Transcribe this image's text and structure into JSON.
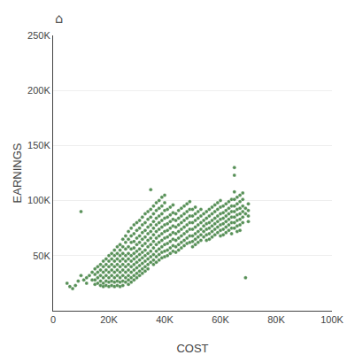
{
  "chart_data": {
    "type": "scatter",
    "xlabel": "COST",
    "ylabel": "EARNINGS",
    "annotations": [
      "⌂"
    ],
    "color": "#3a7d3a",
    "grid": "y",
    "xlim": [
      0,
      100000
    ],
    "ylim": [
      0,
      250000
    ],
    "xticks": [
      0,
      {
        "value": 20000,
        "label": "20K"
      },
      {
        "value": 40000,
        "label": "40K"
      },
      {
        "value": 60000,
        "label": "60K"
      },
      {
        "value": 80000,
        "label": "80K"
      },
      {
        "value": 100000,
        "label": "100K"
      }
    ],
    "yticks": [
      {
        "value": 50000,
        "label": "50K"
      },
      {
        "value": 100000,
        "label": "100K"
      },
      {
        "value": 150000,
        "label": "150K"
      },
      {
        "value": 200000,
        "label": "200K"
      },
      {
        "value": 250000,
        "label": "250K"
      }
    ],
    "x": [
      5000,
      6000,
      7000,
      8000,
      9000,
      10000,
      10000,
      11000,
      12000,
      12000,
      13000,
      14000,
      14000,
      15000,
      15000,
      15000,
      15000,
      16000,
      16000,
      16000,
      16000,
      17000,
      17000,
      17000,
      17000,
      17000,
      18000,
      18000,
      18000,
      18000,
      18000,
      18000,
      19000,
      19000,
      19000,
      19000,
      19000,
      19000,
      20000,
      20000,
      20000,
      20000,
      20000,
      20000,
      20000,
      21000,
      21000,
      21000,
      21000,
      21000,
      21000,
      21000,
      22000,
      22000,
      22000,
      22000,
      22000,
      22000,
      22000,
      22000,
      23000,
      23000,
      23000,
      23000,
      23000,
      23000,
      23000,
      23000,
      24000,
      24000,
      24000,
      24000,
      24000,
      24000,
      24000,
      24000,
      24000,
      25000,
      25000,
      25000,
      25000,
      25000,
      25000,
      25000,
      25000,
      25000,
      26000,
      26000,
      26000,
      26000,
      26000,
      26000,
      26000,
      26000,
      26000,
      27000,
      27000,
      27000,
      27000,
      27000,
      27000,
      27000,
      27000,
      27000,
      27000,
      28000,
      28000,
      28000,
      28000,
      28000,
      28000,
      28000,
      28000,
      28000,
      28000,
      29000,
      29000,
      29000,
      29000,
      29000,
      29000,
      29000,
      29000,
      29000,
      29000,
      30000,
      30000,
      30000,
      30000,
      30000,
      30000,
      30000,
      30000,
      30000,
      30000,
      31000,
      31000,
      31000,
      31000,
      31000,
      31000,
      31000,
      31000,
      31000,
      31000,
      32000,
      32000,
      32000,
      32000,
      32000,
      32000,
      32000,
      32000,
      32000,
      32000,
      33000,
      33000,
      33000,
      33000,
      33000,
      33000,
      33000,
      33000,
      33000,
      33000,
      34000,
      34000,
      34000,
      34000,
      34000,
      34000,
      34000,
      34000,
      34000,
      34000,
      35000,
      35000,
      35000,
      35000,
      35000,
      35000,
      35000,
      35000,
      35000,
      35000,
      36000,
      36000,
      36000,
      36000,
      36000,
      36000,
      36000,
      36000,
      36000,
      36000,
      37000,
      37000,
      37000,
      37000,
      37000,
      37000,
      37000,
      37000,
      37000,
      37000,
      38000,
      38000,
      38000,
      38000,
      38000,
      38000,
      38000,
      38000,
      38000,
      38000,
      39000,
      39000,
      39000,
      39000,
      39000,
      39000,
      39000,
      39000,
      39000,
      39000,
      40000,
      40000,
      40000,
      40000,
      40000,
      40000,
      40000,
      40000,
      40000,
      40000,
      41000,
      41000,
      41000,
      41000,
      41000,
      41000,
      41000,
      41000,
      42000,
      42000,
      42000,
      42000,
      42000,
      42000,
      42000,
      42000,
      43000,
      43000,
      43000,
      43000,
      43000,
      43000,
      43000,
      43000,
      44000,
      44000,
      44000,
      44000,
      44000,
      44000,
      44000,
      45000,
      45000,
      45000,
      45000,
      45000,
      45000,
      45000,
      46000,
      46000,
      46000,
      46000,
      46000,
      46000,
      46000,
      47000,
      47000,
      47000,
      47000,
      47000,
      47000,
      47000,
      48000,
      48000,
      48000,
      48000,
      48000,
      48000,
      48000,
      49000,
      49000,
      49000,
      49000,
      49000,
      49000,
      49000,
      50000,
      50000,
      50000,
      50000,
      50000,
      50000,
      50000,
      51000,
      51000,
      51000,
      51000,
      51000,
      51000,
      51000,
      52000,
      52000,
      52000,
      52000,
      52000,
      52000,
      53000,
      53000,
      53000,
      53000,
      53000,
      53000,
      54000,
      54000,
      54000,
      54000,
      54000,
      55000,
      55000,
      55000,
      55000,
      55000,
      55000,
      56000,
      56000,
      56000,
      56000,
      56000,
      56000,
      57000,
      57000,
      57000,
      57000,
      57000,
      57000,
      58000,
      58000,
      58000,
      58000,
      58000,
      58000,
      59000,
      59000,
      59000,
      59000,
      59000,
      59000,
      60000,
      60000,
      60000,
      60000,
      60000,
      60000,
      60000,
      61000,
      61000,
      61000,
      61000,
      61000,
      61000,
      62000,
      62000,
      62000,
      62000,
      62000,
      62000,
      63000,
      63000,
      63000,
      63000,
      63000,
      63000,
      64000,
      64000,
      64000,
      64000,
      64000,
      64000,
      64000,
      65000,
      65000,
      65000,
      65000,
      65000,
      65000,
      65000,
      65000,
      65000,
      66000,
      66000,
      66000,
      66000,
      66000,
      66000,
      66000,
      67000,
      67000,
      67000,
      67000,
      67000,
      67000,
      67000,
      68000,
      68000,
      68000,
      68000,
      68000,
      68000,
      69000,
      69000,
      69000,
      70000,
      70000,
      70000,
      70000
    ],
    "values": [
      25000,
      22000,
      20000,
      23000,
      27000,
      90000,
      32000,
      28000,
      30000,
      25000,
      32000,
      35000,
      28000,
      38000,
      33000,
      28000,
      24000,
      40000,
      35000,
      30000,
      25000,
      42000,
      37000,
      32000,
      27000,
      23000,
      45000,
      40000,
      35000,
      30000,
      25000,
      22000,
      47000,
      42000,
      37000,
      32000,
      27000,
      23000,
      50000,
      45000,
      40000,
      35000,
      30000,
      26000,
      22000,
      52000,
      47000,
      42000,
      37000,
      32000,
      27000,
      23000,
      55000,
      50000,
      45000,
      40000,
      35000,
      30000,
      26000,
      22000,
      58000,
      52000,
      47000,
      42000,
      37000,
      32000,
      27000,
      23000,
      60000,
      55000,
      50000,
      45000,
      40000,
      35000,
      30000,
      26000,
      22000,
      65000,
      58000,
      52000,
      47000,
      42000,
      37000,
      32000,
      27000,
      23000,
      68000,
      62000,
      56000,
      50000,
      45000,
      40000,
      35000,
      30000,
      26000,
      72000,
      65000,
      58000,
      52000,
      47000,
      42000,
      37000,
      32000,
      28000,
      24000,
      75000,
      68000,
      62000,
      56000,
      50000,
      45000,
      40000,
      35000,
      30000,
      26000,
      78000,
      70000,
      63000,
      57000,
      52000,
      47000,
      42000,
      37000,
      32000,
      28000,
      80000,
      73000,
      66000,
      60000,
      54000,
      49000,
      44000,
      39000,
      34000,
      30000,
      82000,
      75000,
      68000,
      62000,
      56000,
      51000,
      46000,
      41000,
      36000,
      32000,
      85000,
      78000,
      71000,
      65000,
      59000,
      53000,
      48000,
      43000,
      38000,
      34000,
      88000,
      80000,
      73000,
      67000,
      61000,
      55000,
      50000,
      45000,
      40000,
      36000,
      90000,
      83000,
      76000,
      70000,
      64000,
      58000,
      52000,
      47000,
      42000,
      38000,
      110000,
      92000,
      85000,
      78000,
      72000,
      66000,
      60000,
      54000,
      49000,
      44000,
      95000,
      88000,
      81000,
      75000,
      69000,
      63000,
      57000,
      51000,
      46000,
      42000,
      98000,
      91000,
      84000,
      78000,
      72000,
      66000,
      60000,
      54000,
      49000,
      44000,
      100000,
      93000,
      86000,
      80000,
      74000,
      68000,
      62000,
      56000,
      51000,
      46000,
      103000,
      95000,
      88000,
      82000,
      76000,
      70000,
      64000,
      58000,
      53000,
      48000,
      105000,
      98000,
      91000,
      84000,
      78000,
      72000,
      66000,
      60000,
      54000,
      49000,
      92000,
      85000,
      79000,
      73000,
      67000,
      61000,
      55000,
      50000,
      94000,
      87000,
      81000,
      75000,
      69000,
      63000,
      57000,
      52000,
      96000,
      89000,
      83000,
      77000,
      71000,
      65000,
      59000,
      54000,
      88000,
      82000,
      76000,
      70000,
      64000,
      58000,
      53000,
      91000,
      84000,
      78000,
      72000,
      66000,
      60000,
      55000,
      93000,
      86000,
      80000,
      74000,
      68000,
      62000,
      57000,
      95000,
      88000,
      82000,
      76000,
      70000,
      64000,
      59000,
      97000,
      90000,
      84000,
      78000,
      72000,
      66000,
      61000,
      99000,
      92000,
      86000,
      80000,
      74000,
      68000,
      62000,
      92000,
      86000,
      80000,
      74000,
      68000,
      63000,
      58000,
      94000,
      88000,
      82000,
      76000,
      70000,
      65000,
      60000,
      90000,
      84000,
      78000,
      72000,
      67000,
      62000,
      92000,
      86000,
      80000,
      74000,
      69000,
      64000,
      88000,
      82000,
      77000,
      72000,
      67000,
      90000,
      84000,
      79000,
      74000,
      69000,
      64000,
      92000,
      86000,
      80000,
      75000,
      70000,
      65000,
      94000,
      88000,
      82000,
      77000,
      72000,
      67000,
      96000,
      90000,
      84000,
      79000,
      74000,
      69000,
      98000,
      92000,
      86000,
      81000,
      76000,
      71000,
      100000,
      94000,
      88000,
      83000,
      78000,
      73000,
      68000,
      95000,
      89000,
      84000,
      79000,
      74000,
      69000,
      97000,
      91000,
      86000,
      81000,
      76000,
      71000,
      99000,
      93000,
      88000,
      83000,
      78000,
      73000,
      101000,
      95000,
      90000,
      85000,
      80000,
      75000,
      70000,
      130000,
      123000,
      108000,
      101000,
      95000,
      90000,
      85000,
      80000,
      75000,
      103000,
      97000,
      92000,
      87000,
      82000,
      77000,
      72000,
      105000,
      99000,
      93000,
      88000,
      83000,
      78000,
      73000,
      107000,
      101000,
      95000,
      90000,
      85000,
      80000,
      30000,
      93000,
      88000,
      97000,
      91000,
      86000,
      81000
    ]
  }
}
